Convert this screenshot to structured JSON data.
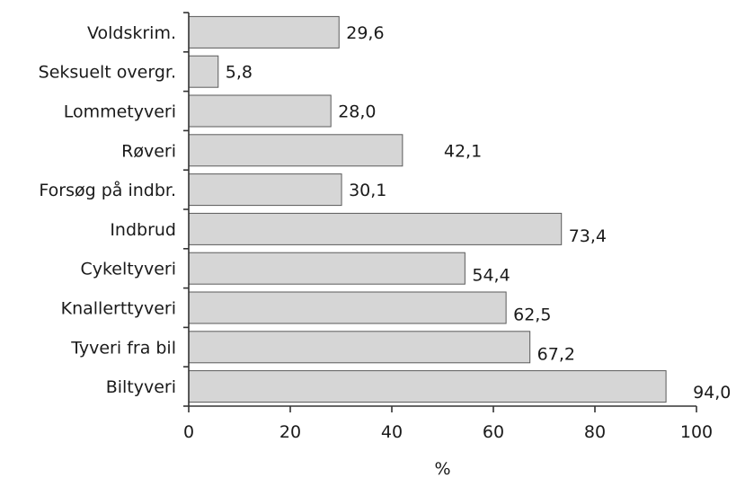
{
  "chart_data": {
    "type": "bar",
    "orientation": "horizontal",
    "categories": [
      "Voldskrim.",
      "Seksuelt overgr.",
      "Lommetyveri",
      "Røveri",
      "Forsøg på indbr.",
      "Indbrud",
      "Cykeltyveri",
      "Knallerttyveri",
      "Tyveri fra bil",
      "Biltyveri"
    ],
    "values": [
      29.6,
      5.8,
      28.0,
      42.1,
      30.1,
      73.4,
      54.4,
      62.5,
      67.2,
      94.0
    ],
    "value_labels": [
      "29,6",
      "5,8",
      "28,0",
      "42,1",
      "30,1",
      "73,4",
      "54,4",
      "62,5",
      "67,2",
      "94,0"
    ],
    "xlim": [
      0,
      100
    ],
    "xticks": [
      0,
      20,
      40,
      60,
      80,
      100
    ],
    "xtick_labels": [
      "0",
      "20",
      "40",
      "60",
      "80",
      "100"
    ],
    "xlabel": "%",
    "grid": false,
    "colors": {
      "bar_fill": "#d6d6d6",
      "bar_stroke": "#5a5a5a",
      "axis": "#333333"
    }
  }
}
